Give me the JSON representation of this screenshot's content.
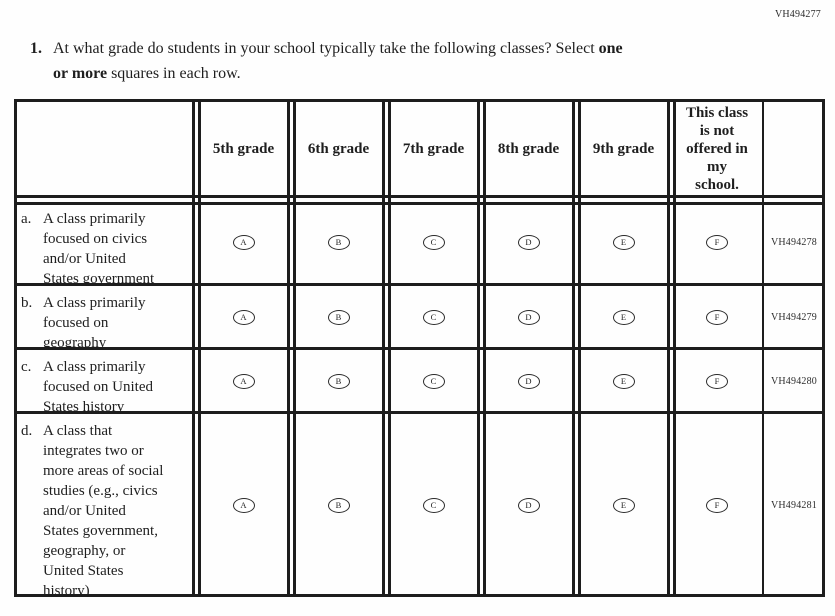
{
  "page": {
    "code_top_right": "VH494277"
  },
  "question": {
    "number": "1.",
    "text_pre": "At what grade do students in your school typically take the following classes? Select ",
    "text_bold_1": "one",
    "text_bold_2": "or more",
    "text_post": " squares in each row."
  },
  "table": {
    "column_headers": [
      "5th grade",
      "6th grade",
      "7th grade",
      "8th grade",
      "9th grade",
      "This class\nis not\noffered in\nmy\nschool."
    ],
    "option_letters": [
      "A",
      "B",
      "C",
      "D",
      "E",
      "F"
    ],
    "rows": [
      {
        "letter": "a.",
        "label": "A class primarily\nfocused on civics\nand/or United\nStates government",
        "code": "VH494278"
      },
      {
        "letter": "b.",
        "label": "A class primarily\nfocused on\ngeography",
        "code": "VH494279"
      },
      {
        "letter": "c.",
        "label": "A class primarily\nfocused on United\nStates history",
        "code": "VH494280"
      },
      {
        "letter": "d.",
        "label": "A class that\nintegrates two or\nmore areas of social\nstudies (e.g., civics\nand/or United\nStates government,\ngeography, or\nUnited States\nhistory)",
        "code": "VH494281"
      }
    ]
  }
}
